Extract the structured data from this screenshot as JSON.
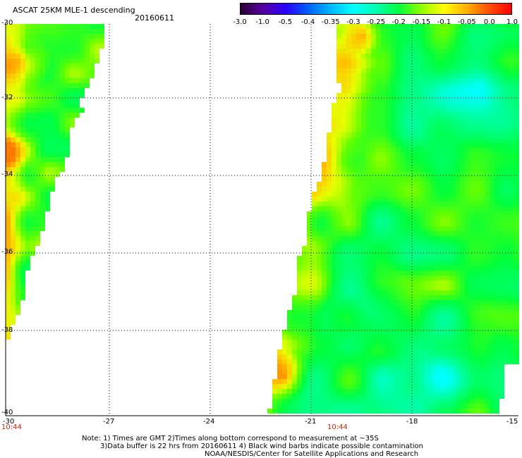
{
  "header": {
    "title": "ASCAT 25KM MLE-1 descending",
    "date": "20160611"
  },
  "colorbar": {
    "labels": [
      "-3.0",
      "-1.0",
      "-0.5",
      "-0.4",
      "-0.35",
      "-0.3",
      "-0.25",
      "-0.2",
      "-0.15",
      "-0.1",
      "-0.05",
      "0.0",
      "1.0"
    ],
    "colors": [
      "#2a0035",
      "#5500a0",
      "#2a00ff",
      "#0060ff",
      "#00b8ff",
      "#00ffff",
      "#00ffb0",
      "#00ff40",
      "#90ff00",
      "#ffff00",
      "#ffb000",
      "#ff5000",
      "#ff0000"
    ]
  },
  "map": {
    "lon_labels": [
      "-30",
      "-27",
      "-24",
      "-21",
      "-18",
      "-15"
    ],
    "lat_labels": [
      "-30",
      "-32",
      "-34",
      "-36",
      "-38",
      "-40"
    ],
    "time_labels": [
      "10:44",
      "10:44"
    ],
    "gridlines": true
  },
  "footer": {
    "note_line1": "Note: 1) Times are GMT 2)Times along bottom correspond to measurement at ~35S",
    "note_line2": "3)Data buffer is 22 hrs from 20160611 4) Black wind barbs indicate possible contamination",
    "credit": "NOAA/NESDIS/Center for Satellite Applications and Research"
  }
}
